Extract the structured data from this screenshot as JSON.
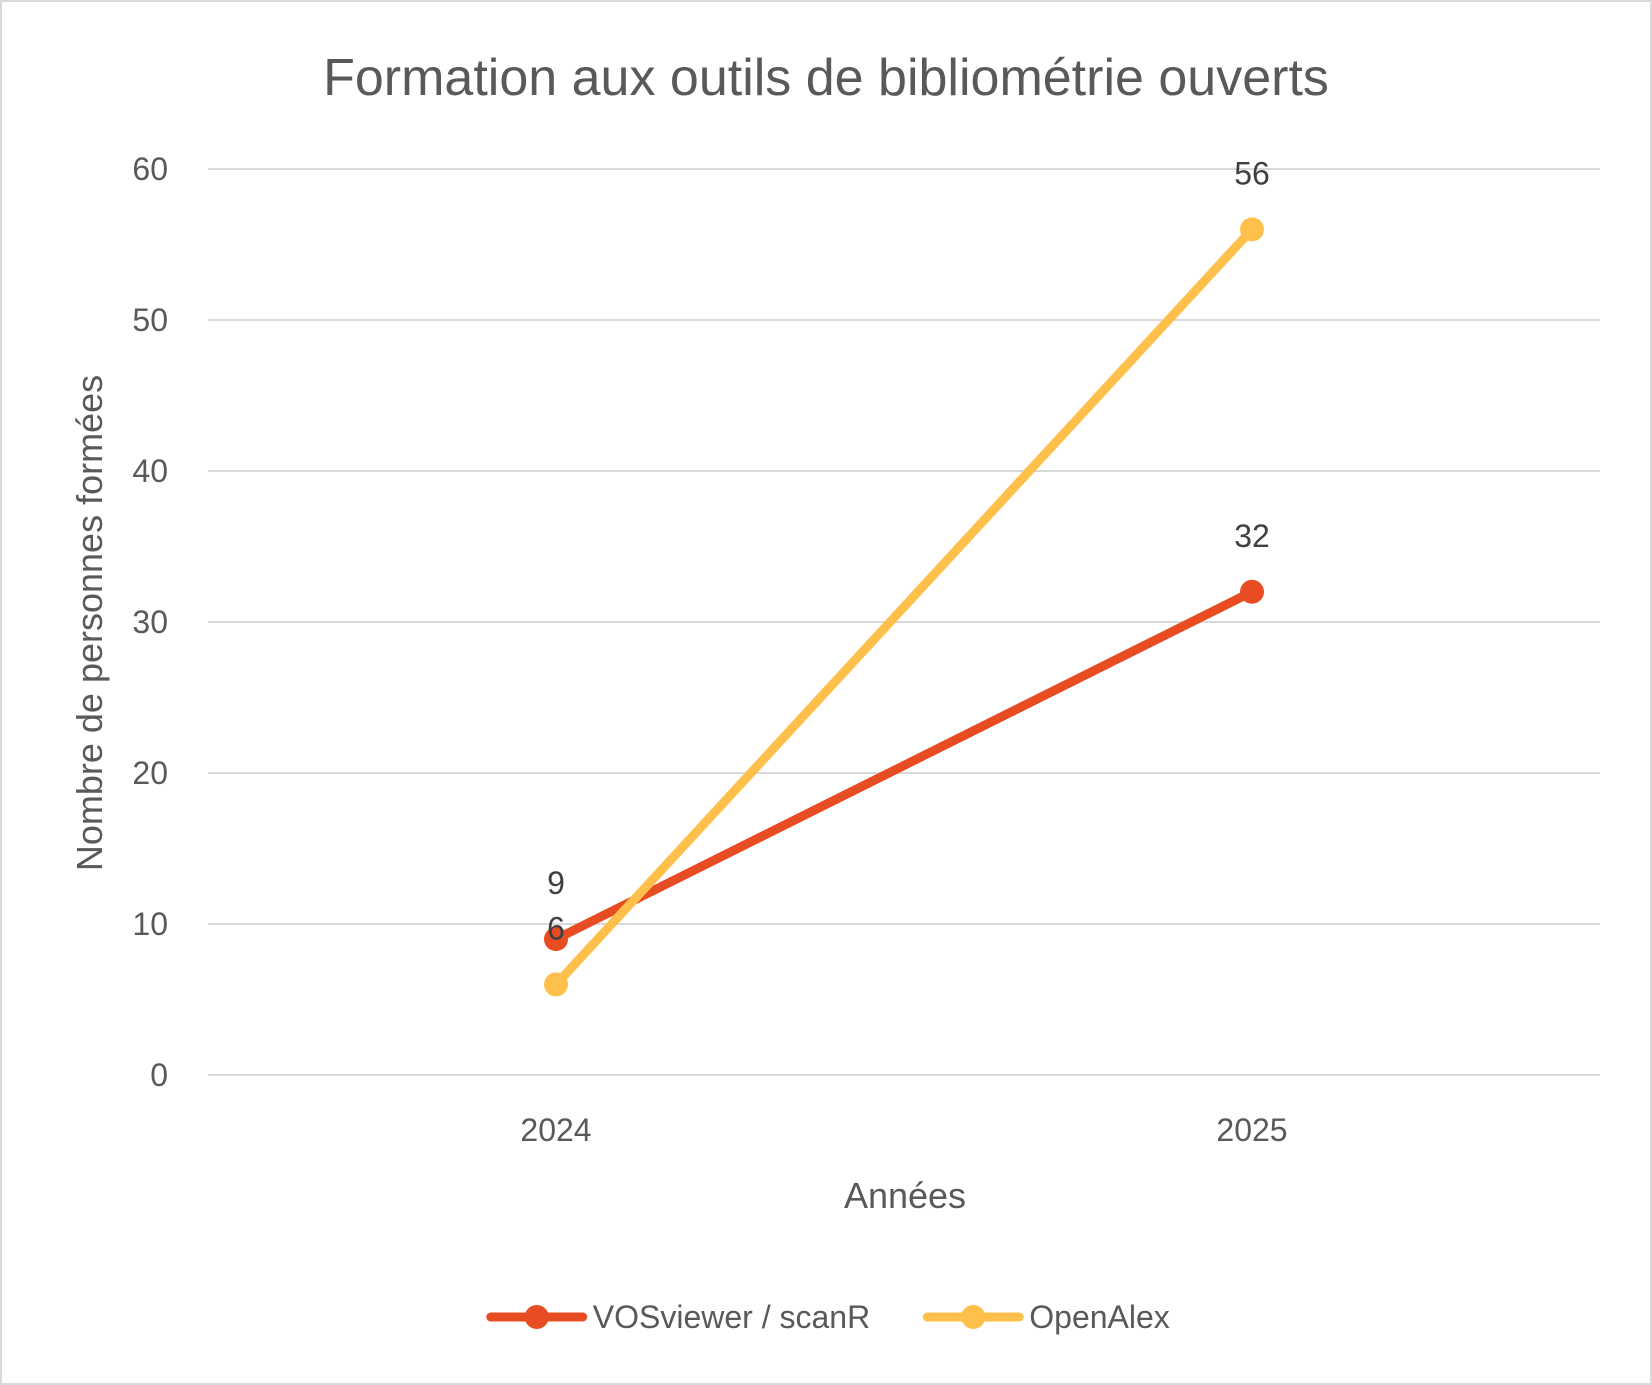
{
  "chart_data": {
    "type": "line",
    "title": "Formation aux outils de bibliométrie ouverts",
    "xlabel": "Années",
    "ylabel": "Nombre de personnes formées",
    "categories": [
      "2024",
      "2025"
    ],
    "series": [
      {
        "name": "VOSviewer / scanR",
        "values": [
          9,
          32
        ],
        "color": "#E84C22"
      },
      {
        "name": "OpenAlex",
        "values": [
          6,
          56
        ],
        "color": "#FFC04B"
      }
    ],
    "ylim": [
      0,
      60
    ],
    "yticks": [
      "0",
      "10",
      "20",
      "30",
      "40",
      "50",
      "60"
    ],
    "grid": true,
    "legend_position": "bottom"
  }
}
